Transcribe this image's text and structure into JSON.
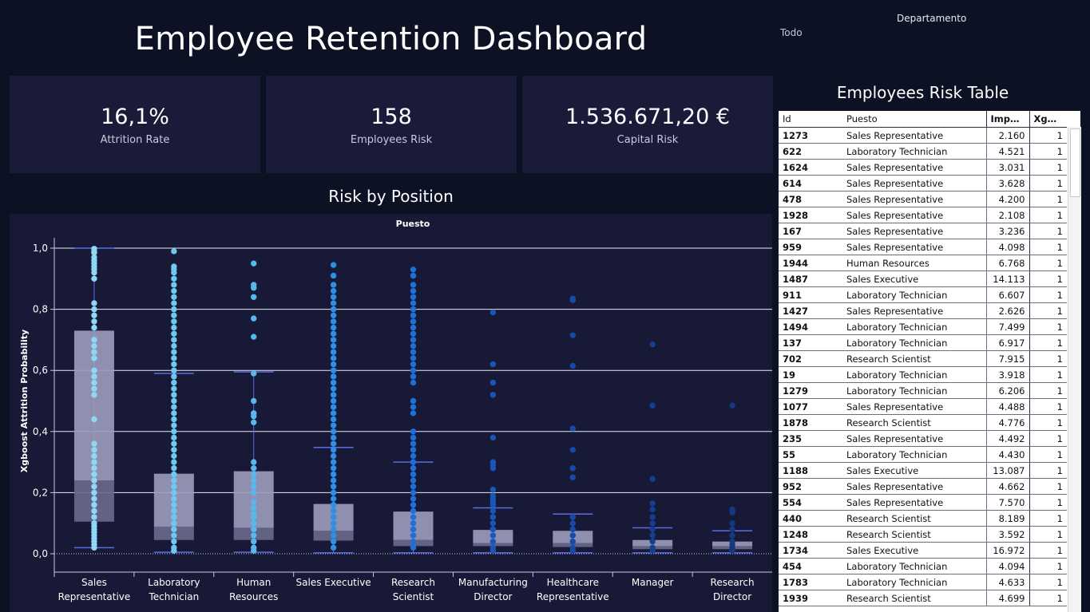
{
  "dashboard": {
    "title": "Employee Retention Dashboard"
  },
  "filter": {
    "label": "Departamento",
    "value": "Todo"
  },
  "kpis": [
    {
      "value": "16,1%",
      "label": "Attrition Rate"
    },
    {
      "value": "158",
      "label": "Employees Risk"
    },
    {
      "value": "1.536.671,20 €",
      "label": "Capital Risk"
    }
  ],
  "chart_section": {
    "title": "Risk by Position"
  },
  "chart_data": {
    "type": "boxplot",
    "column_header": "Puesto",
    "ylabel": "Xgboost Attrition Probability",
    "ylim": [
      0,
      1.0
    ],
    "yticks": [
      "0,0",
      "0,2",
      "0,4",
      "0,6",
      "0,8",
      "1,0"
    ],
    "grid": true,
    "categories": [
      {
        "line1": "Sales",
        "line2": "Representative",
        "min": 0.02,
        "q1": 0.105,
        "median": 0.24,
        "q3": 0.73,
        "max": 1.0,
        "color": "#8fd8f5",
        "points": [
          0.998,
          0.99,
          0.985,
          0.97,
          0.96,
          0.95,
          0.94,
          0.93,
          0.92,
          0.9,
          0.82,
          0.8,
          0.78,
          0.76,
          0.74,
          0.7,
          0.68,
          0.66,
          0.64,
          0.6,
          0.58,
          0.56,
          0.54,
          0.52,
          0.44,
          0.36,
          0.34,
          0.32,
          0.3,
          0.28,
          0.26,
          0.24,
          0.22,
          0.2,
          0.18,
          0.16,
          0.14,
          0.12,
          0.1,
          0.09,
          0.08,
          0.07,
          0.06,
          0.05,
          0.04,
          0.03,
          0.02
        ]
      },
      {
        "line1": "Laboratory",
        "line2": "Technician",
        "min": 0.005,
        "q1": 0.045,
        "median": 0.088,
        "q3": 0.262,
        "max": 0.59,
        "color": "#6ec8f0",
        "points": [
          0.99,
          0.94,
          0.93,
          0.92,
          0.9,
          0.88,
          0.86,
          0.84,
          0.82,
          0.8,
          0.78,
          0.76,
          0.74,
          0.72,
          0.7,
          0.68,
          0.66,
          0.64,
          0.62,
          0.6,
          0.58,
          0.56,
          0.54,
          0.52,
          0.5,
          0.48,
          0.46,
          0.44,
          0.42,
          0.4,
          0.38,
          0.36,
          0.34,
          0.32,
          0.3,
          0.28,
          0.26,
          0.24,
          0.22,
          0.2,
          0.18,
          0.16,
          0.14,
          0.12,
          0.1,
          0.08,
          0.06,
          0.04,
          0.02,
          0.01
        ]
      },
      {
        "line1": "Human",
        "line2": "Resources",
        "min": 0.005,
        "q1": 0.045,
        "median": 0.085,
        "q3": 0.27,
        "max": 0.595,
        "color": "#58b8ee",
        "points": [
          0.95,
          0.88,
          0.87,
          0.84,
          0.77,
          0.71,
          0.59,
          0.5,
          0.46,
          0.45,
          0.43,
          0.3,
          0.28,
          0.26,
          0.24,
          0.22,
          0.2,
          0.17,
          0.15,
          0.13,
          0.12,
          0.1,
          0.08,
          0.06,
          0.04,
          0.02,
          0.01
        ]
      },
      {
        "line1": "Sales Executive",
        "line2": "",
        "min": 0.003,
        "q1": 0.043,
        "median": 0.075,
        "q3": 0.163,
        "max": 0.348,
        "color": "#2f8fe6",
        "points": [
          0.945,
          0.91,
          0.88,
          0.86,
          0.84,
          0.82,
          0.8,
          0.78,
          0.76,
          0.74,
          0.72,
          0.7,
          0.68,
          0.66,
          0.64,
          0.62,
          0.6,
          0.58,
          0.56,
          0.54,
          0.52,
          0.5,
          0.48,
          0.46,
          0.44,
          0.42,
          0.4,
          0.38,
          0.36,
          0.34,
          0.32,
          0.3,
          0.28,
          0.26,
          0.24,
          0.22,
          0.2,
          0.18,
          0.16,
          0.14,
          0.12,
          0.1,
          0.08,
          0.06,
          0.04,
          0.02
        ]
      },
      {
        "line1": "Research",
        "line2": "Scientist",
        "min": 0.003,
        "q1": 0.025,
        "median": 0.045,
        "q3": 0.138,
        "max": 0.3,
        "color": "#1f6fd8",
        "points": [
          0.93,
          0.91,
          0.88,
          0.86,
          0.84,
          0.82,
          0.8,
          0.78,
          0.76,
          0.74,
          0.72,
          0.7,
          0.68,
          0.66,
          0.64,
          0.62,
          0.6,
          0.58,
          0.56,
          0.5,
          0.48,
          0.46,
          0.4,
          0.38,
          0.36,
          0.34,
          0.32,
          0.3,
          0.28,
          0.26,
          0.24,
          0.22,
          0.2,
          0.18,
          0.16,
          0.14,
          0.12,
          0.1,
          0.08,
          0.06,
          0.04,
          0.02
        ]
      },
      {
        "line1": "Manufacturing",
        "line2": "Director",
        "min": 0.003,
        "q1": 0.025,
        "median": 0.035,
        "q3": 0.078,
        "max": 0.15,
        "color": "#1a55b8",
        "points": [
          0.79,
          0.62,
          0.56,
          0.52,
          0.38,
          0.3,
          0.29,
          0.28,
          0.21,
          0.19,
          0.18,
          0.17,
          0.16,
          0.14,
          0.12,
          0.1,
          0.08,
          0.06,
          0.04,
          0.02,
          0.01
        ]
      },
      {
        "line1": "Healthcare",
        "line2": "Representative",
        "min": 0.003,
        "q1": 0.022,
        "median": 0.035,
        "q3": 0.075,
        "max": 0.13,
        "color": "#174aa8",
        "points": [
          0.835,
          0.83,
          0.715,
          0.615,
          0.41,
          0.34,
          0.28,
          0.25,
          0.12,
          0.1,
          0.08,
          0.06,
          0.04,
          0.02,
          0.01
        ]
      },
      {
        "line1": "Manager",
        "line2": "",
        "min": 0.003,
        "q1": 0.015,
        "median": 0.025,
        "q3": 0.045,
        "max": 0.085,
        "color": "#153f8e",
        "points": [
          0.685,
          0.485,
          0.245,
          0.165,
          0.145,
          0.12,
          0.1,
          0.08,
          0.06,
          0.04,
          0.02,
          0.01
        ]
      },
      {
        "line1": "Research",
        "line2": "Director",
        "min": 0.003,
        "q1": 0.015,
        "median": 0.025,
        "q3": 0.04,
        "max": 0.075,
        "color": "#14397f",
        "points": [
          0.485,
          0.145,
          0.135,
          0.1,
          0.08,
          0.06,
          0.04,
          0.03,
          0.02,
          0.01
        ]
      }
    ]
  },
  "table": {
    "title": "Employees Risk Table",
    "columns": [
      "Id",
      "Puesto",
      "Impac..",
      "Xgboo.."
    ],
    "rows": [
      [
        "1273",
        "Sales Representative",
        "2.160",
        "1"
      ],
      [
        "622",
        "Laboratory Technician",
        "4.521",
        "1"
      ],
      [
        "1624",
        "Sales Representative",
        "3.031",
        "1"
      ],
      [
        "614",
        "Sales Representative",
        "3.628",
        "1"
      ],
      [
        "478",
        "Sales Representative",
        "4.200",
        "1"
      ],
      [
        "1928",
        "Sales Representative",
        "2.108",
        "1"
      ],
      [
        "167",
        "Sales Representative",
        "3.236",
        "1"
      ],
      [
        "959",
        "Sales Representative",
        "4.098",
        "1"
      ],
      [
        "1944",
        "Human Resources",
        "6.768",
        "1"
      ],
      [
        "1487",
        "Sales Executive",
        "14.113",
        "1"
      ],
      [
        "911",
        "Laboratory Technician",
        "6.607",
        "1"
      ],
      [
        "1427",
        "Sales Representative",
        "2.626",
        "1"
      ],
      [
        "1494",
        "Laboratory Technician",
        "7.499",
        "1"
      ],
      [
        "137",
        "Laboratory Technician",
        "6.917",
        "1"
      ],
      [
        "702",
        "Research Scientist",
        "7.915",
        "1"
      ],
      [
        "19",
        "Laboratory Technician",
        "3.918",
        "1"
      ],
      [
        "1279",
        "Laboratory Technician",
        "6.206",
        "1"
      ],
      [
        "1077",
        "Sales Representative",
        "4.488",
        "1"
      ],
      [
        "1878",
        "Research Scientist",
        "4.776",
        "1"
      ],
      [
        "235",
        "Sales Representative",
        "4.492",
        "1"
      ],
      [
        "55",
        "Laboratory Technician",
        "4.430",
        "1"
      ],
      [
        "1188",
        "Sales Executive",
        "13.087",
        "1"
      ],
      [
        "952",
        "Sales Representative",
        "4.662",
        "1"
      ],
      [
        "554",
        "Sales Representative",
        "7.570",
        "1"
      ],
      [
        "440",
        "Research Scientist",
        "8.189",
        "1"
      ],
      [
        "1248",
        "Research Scientist",
        "3.592",
        "1"
      ],
      [
        "1734",
        "Sales Executive",
        "16.972",
        "1"
      ],
      [
        "454",
        "Laboratory Technician",
        "4.094",
        "1"
      ],
      [
        "1783",
        "Laboratory Technician",
        "4.633",
        "1"
      ],
      [
        "1939",
        "Research Scientist",
        "4.699",
        "1"
      ]
    ]
  }
}
